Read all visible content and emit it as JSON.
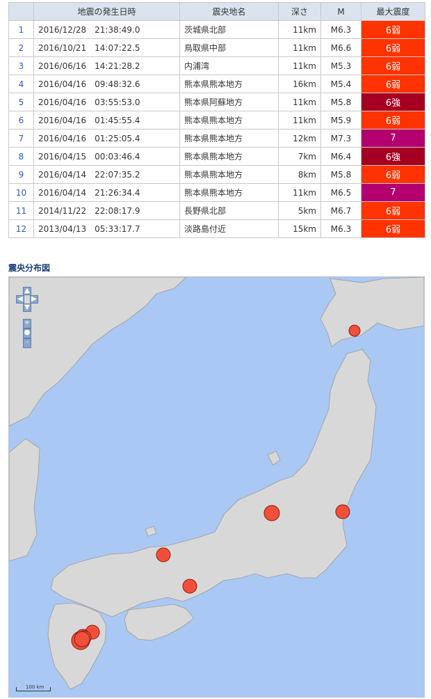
{
  "table": {
    "headers": [
      "",
      "地震の発生日時",
      "震央地名",
      "深さ",
      "M",
      "最大震度"
    ],
    "rows": [
      {
        "no": "1",
        "datetime": "2016/12/28　21:38:49.0",
        "epicenter": "茨城県北部",
        "depth": "11km",
        "magnitude": "M6.3",
        "intensity": "6弱",
        "color": "#ff3300"
      },
      {
        "no": "2",
        "datetime": "2016/10/21　14:07:22.5",
        "epicenter": "鳥取県中部",
        "depth": "11km",
        "magnitude": "M6.6",
        "intensity": "6弱",
        "color": "#ff3300"
      },
      {
        "no": "3",
        "datetime": "2016/06/16　14:21:28.2",
        "epicenter": "内浦湾",
        "depth": "11km",
        "magnitude": "M5.3",
        "intensity": "6弱",
        "color": "#ff3300"
      },
      {
        "no": "4",
        "datetime": "2016/04/16　09:48:32.6",
        "epicenter": "熊本県熊本地方",
        "depth": "16km",
        "magnitude": "M5.4",
        "intensity": "6弱",
        "color": "#ff3300"
      },
      {
        "no": "5",
        "datetime": "2016/04/16　03:55:53.0",
        "epicenter": "熊本県阿蘇地方",
        "depth": "11km",
        "magnitude": "M5.8",
        "intensity": "6強",
        "color": "#a50021"
      },
      {
        "no": "6",
        "datetime": "2016/04/16　01:45:55.4",
        "epicenter": "熊本県熊本地方",
        "depth": "11km",
        "magnitude": "M5.9",
        "intensity": "6弱",
        "color": "#ff3300"
      },
      {
        "no": "7",
        "datetime": "2016/04/16　01:25:05.4",
        "epicenter": "熊本県熊本地方",
        "depth": "12km",
        "magnitude": "M7.3",
        "intensity": "7",
        "color": "#b4006e"
      },
      {
        "no": "8",
        "datetime": "2016/04/15　00:03:46.4",
        "epicenter": "熊本県熊本地方",
        "depth": "7km",
        "magnitude": "M6.4",
        "intensity": "6強",
        "color": "#a50021"
      },
      {
        "no": "9",
        "datetime": "2016/04/14　22:07:35.2",
        "epicenter": "熊本県熊本地方",
        "depth": "8km",
        "magnitude": "M5.8",
        "intensity": "6弱",
        "color": "#ff3300"
      },
      {
        "no": "10",
        "datetime": "2016/04/14　21:26:34.4",
        "epicenter": "熊本県熊本地方",
        "depth": "11km",
        "magnitude": "M6.5",
        "intensity": "7",
        "color": "#b4006e"
      },
      {
        "no": "11",
        "datetime": "2014/11/22　22:08:17.9",
        "epicenter": "長野県北部",
        "depth": "5km",
        "magnitude": "M6.7",
        "intensity": "6弱",
        "color": "#ff3300"
      },
      {
        "no": "12",
        "datetime": "2013/04/13　05:33:17.7",
        "epicenter": "淡路島付近",
        "depth": "15km",
        "magnitude": "M6.3",
        "intensity": "6弱",
        "color": "#ff3300"
      }
    ]
  },
  "map": {
    "title": "震央分布図",
    "scale_label": "100 km",
    "controls": {
      "up": "▲",
      "down": "▼",
      "left": "◀",
      "right": "▶",
      "zoom_in": "+",
      "reset": "●",
      "zoom_out": "-"
    },
    "colors": {
      "sea": "#aac8f4",
      "land": "#d8d8d8",
      "marker": "#f0503a",
      "marker_stroke": "#8a1a10"
    }
  }
}
